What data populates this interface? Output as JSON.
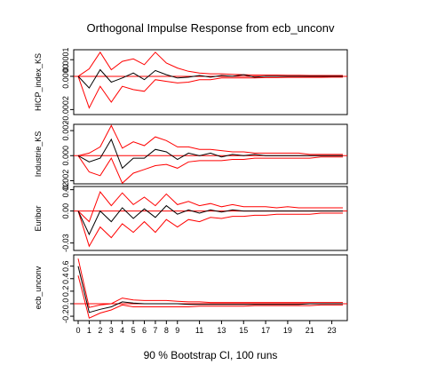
{
  "chart_data": {
    "type": "line",
    "title": "Orthogonal Impulse Response from ecb_unconv",
    "xlabel": "90 % Bootstrap CI,  100 runs",
    "x_tick_labels": [
      "0",
      "1",
      "2",
      "3",
      "4",
      "5",
      "6",
      "7",
      "8",
      "9",
      "11",
      "13",
      "15",
      "17",
      "19",
      "21",
      "23"
    ],
    "x_tick_values": [
      0,
      1,
      2,
      3,
      4,
      5,
      6,
      7,
      8,
      9,
      11,
      13,
      15,
      17,
      19,
      21,
      23
    ],
    "xlim": [
      0,
      24
    ],
    "x": [
      0,
      1,
      2,
      3,
      4,
      5,
      6,
      7,
      8,
      9,
      10,
      11,
      12,
      13,
      14,
      15,
      16,
      17,
      18,
      19,
      20,
      21,
      22,
      23,
      24
    ],
    "colors": {
      "irf": "#000000",
      "ci": "#ff0000",
      "zero": "#ff0000",
      "frame": "#000000"
    },
    "panels": [
      {
        "ylabel": "HICP_index_KS",
        "ylim": [
          -0.00023,
          0.00016
        ],
        "y_ticks": [
          0.0001,
          0.0,
          -0.0002
        ],
        "y_tick_labels": [
          "0.0001",
          "0.0000",
          "-0.0002"
        ],
        "irf": [
          0,
          -7e-05,
          4e-05,
          -3.5e-05,
          -1e-05,
          2e-05,
          -2e-05,
          3.5e-05,
          1e-05,
          -1e-05,
          -5e-06,
          5e-06,
          -5e-06,
          5e-06,
          0.0,
          1e-05,
          -5e-06,
          0.0,
          0.0,
          0.0,
          0.0,
          0.0,
          0.0,
          0.0,
          0.0
        ],
        "lower": [
          0,
          -0.00019,
          -6e-05,
          -0.000155,
          -6e-05,
          -8e-05,
          -9e-05,
          -2e-05,
          -3e-05,
          -4e-05,
          -3.5e-05,
          -2e-05,
          -2e-05,
          -1e-05,
          -1e-05,
          -1e-05,
          -1e-05,
          -8e-06,
          -8e-06,
          -6e-06,
          -6e-06,
          -6e-06,
          -6e-06,
          -5e-06,
          -5e-06
        ],
        "upper": [
          0,
          4.5e-05,
          0.000145,
          4e-05,
          9e-05,
          0.000105,
          7e-05,
          0.000145,
          8e-05,
          5e-05,
          3e-05,
          2e-05,
          1.5e-05,
          1.5e-05,
          1.2e-05,
          1e-05,
          8e-06,
          8e-06,
          8e-06,
          6e-06,
          6e-06,
          5e-06,
          5e-06,
          5e-06,
          5e-06
        ]
      },
      {
        "ylabel": "Industrie_KS",
        "ylim": [
          -0.00225,
          0.0025
        ],
        "y_ticks": [
          0.002,
          0.0,
          -0.002
        ],
        "y_tick_labels": [
          "0.002",
          "0.000",
          "-0.002"
        ],
        "irf": [
          0,
          -0.0005,
          -0.0002,
          0.0013,
          -0.001,
          -0.0002,
          -0.0002,
          0.0005,
          0.0003,
          -0.0003,
          0.0002,
          0.0,
          0.0002,
          -0.0001,
          0.0001,
          0.0,
          0.0001,
          0.0,
          0.0,
          0.0,
          0.0,
          0.0,
          0.0,
          0.0,
          0.0
        ],
        "lower": [
          0,
          -0.0013,
          -0.0016,
          -0.0002,
          -0.0022,
          -0.0014,
          -0.0011,
          -0.0008,
          -0.0007,
          -0.001,
          -0.0005,
          -0.0004,
          -0.0004,
          -0.0004,
          -0.0003,
          -0.0003,
          -0.0002,
          -0.0002,
          -0.0002,
          -0.0002,
          -0.0002,
          -0.0002,
          -0.0001,
          -0.0001,
          -0.0001
        ],
        "upper": [
          0,
          0.0002,
          0.0007,
          0.0024,
          0.0006,
          0.0011,
          0.0008,
          0.0015,
          0.0012,
          0.0007,
          0.0007,
          0.0005,
          0.0005,
          0.0004,
          0.0003,
          0.0003,
          0.0002,
          0.0002,
          0.0002,
          0.0002,
          0.0002,
          0.0001,
          0.0001,
          0.0001,
          0.0001
        ]
      },
      {
        "ylabel": "Euribor",
        "ylim": [
          -0.037,
          0.023
        ],
        "y_ticks": [
          0.02,
          0.0,
          -0.03
        ],
        "y_tick_labels": [
          "0.02",
          "0.00",
          "-0.03"
        ],
        "irf": [
          0,
          -0.022,
          0.0,
          -0.01,
          0.003,
          -0.007,
          0.002,
          -0.006,
          0.005,
          -0.003,
          0.001,
          -0.002,
          0.001,
          -0.001,
          0.001,
          0.0,
          0.0,
          0.0,
          0.0,
          0.0,
          0.0,
          0.0,
          0.0,
          0.0,
          0.0
        ],
        "lower": [
          0,
          -0.033,
          -0.015,
          -0.025,
          -0.012,
          -0.02,
          -0.01,
          -0.02,
          -0.008,
          -0.015,
          -0.008,
          -0.01,
          -0.006,
          -0.007,
          -0.005,
          -0.005,
          -0.004,
          -0.004,
          -0.003,
          -0.003,
          -0.003,
          -0.003,
          -0.002,
          -0.002,
          -0.002
        ],
        "upper": [
          0,
          -0.01,
          0.018,
          0.005,
          0.017,
          0.006,
          0.013,
          0.005,
          0.016,
          0.006,
          0.009,
          0.005,
          0.007,
          0.004,
          0.006,
          0.004,
          0.004,
          0.004,
          0.003,
          0.004,
          0.003,
          0.003,
          0.003,
          0.003,
          0.003
        ]
      },
      {
        "ylabel": "ecb_unconv",
        "ylim": [
          -0.27,
          0.78
        ],
        "y_ticks": [
          0.6,
          0.4,
          0.2,
          0.0,
          -0.2
        ],
        "y_tick_labels": [
          "0.6",
          "0.4",
          "0.2",
          "0.0",
          "-0.2"
        ],
        "irf": [
          0.6,
          -0.14,
          -0.09,
          -0.05,
          0.03,
          0.01,
          0.0,
          0.0,
          0.0,
          0.0,
          -0.01,
          -0.01,
          -0.01,
          -0.01,
          -0.01,
          -0.01,
          -0.01,
          -0.01,
          -0.01,
          -0.01,
          -0.01,
          0.0,
          0.0,
          0.0,
          0.0
        ],
        "lower": [
          0.45,
          -0.23,
          -0.15,
          -0.1,
          -0.02,
          -0.05,
          -0.05,
          -0.05,
          -0.05,
          -0.05,
          -0.05,
          -0.04,
          -0.04,
          -0.04,
          -0.04,
          -0.04,
          -0.03,
          -0.03,
          -0.03,
          -0.03,
          -0.03,
          -0.03,
          -0.02,
          -0.02,
          -0.02
        ],
        "upper": [
          0.72,
          -0.06,
          -0.02,
          0.0,
          0.09,
          0.06,
          0.05,
          0.05,
          0.05,
          0.04,
          0.03,
          0.03,
          0.02,
          0.02,
          0.02,
          0.02,
          0.02,
          0.02,
          0.02,
          0.02,
          0.02,
          0.02,
          0.02,
          0.02,
          0.02
        ]
      }
    ]
  }
}
